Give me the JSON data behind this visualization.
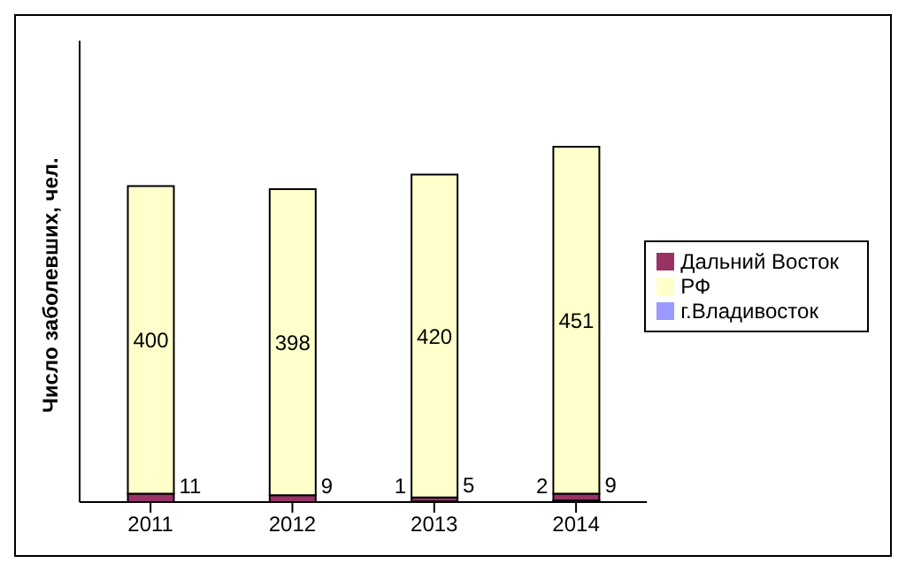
{
  "chart_data": {
    "type": "bar",
    "stacked": true,
    "ylabel": "Число заболевших, чел.",
    "categories": [
      "2011",
      "2012",
      "2013",
      "2014"
    ],
    "series": [
      {
        "name": "г.Владивосток",
        "color": "#9999ff",
        "values": [
          null,
          null,
          1,
          2
        ]
      },
      {
        "name": "Дальний Восток",
        "color": "#993366",
        "values": [
          11,
          9,
          5,
          9
        ]
      },
      {
        "name": "РФ",
        "color": "#ffffcc",
        "values": [
          400,
          398,
          420,
          451
        ]
      }
    ],
    "legend": "right",
    "data_labels": true,
    "tick_labels": "x"
  }
}
